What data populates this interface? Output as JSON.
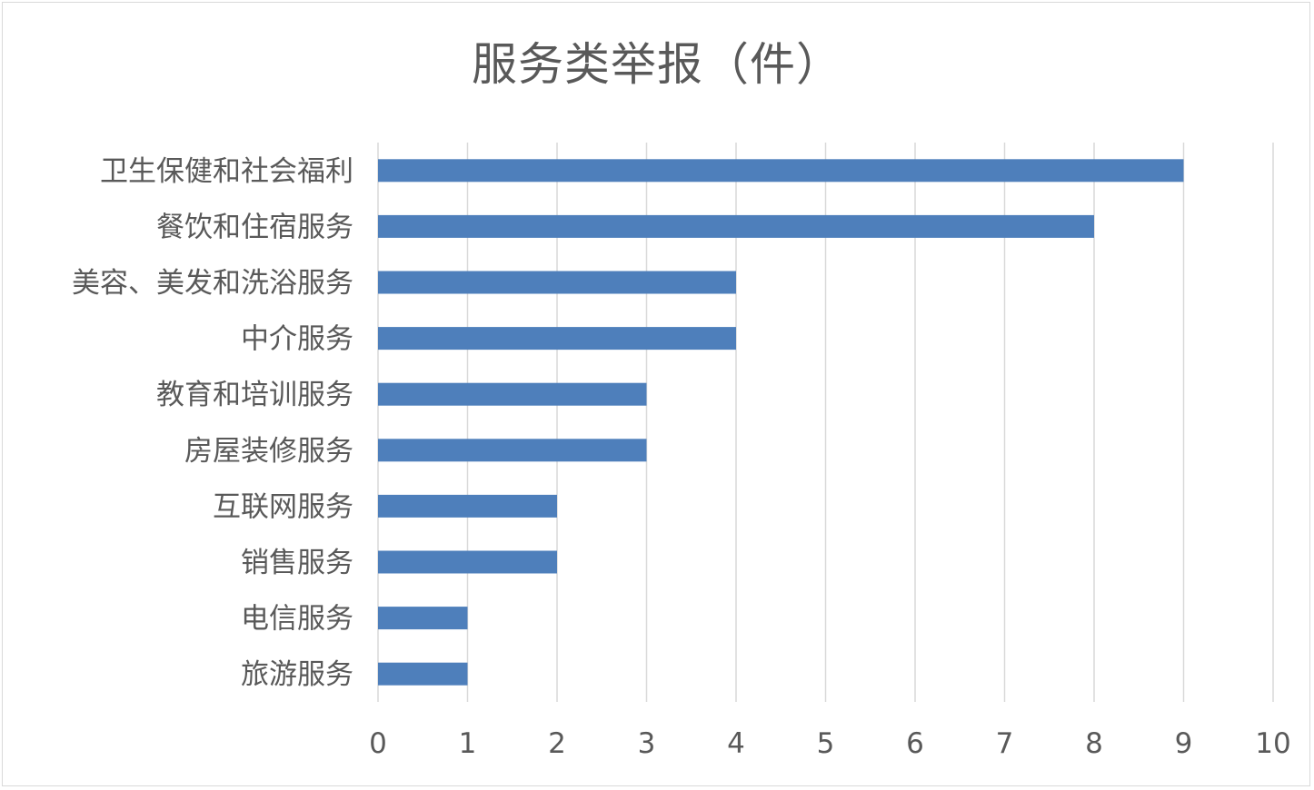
{
  "chart_data": {
    "type": "bar",
    "orientation": "horizontal",
    "title": "服务类举报（件）",
    "categories": [
      "卫生保健和社会福利",
      "餐饮和住宿服务",
      "美容、美发和洗浴服务",
      "中介服务",
      "教育和培训服务",
      "房屋装修服务",
      "互联网服务",
      "销售服务",
      "电信服务",
      "旅游服务"
    ],
    "values": [
      9,
      8,
      4,
      4,
      3,
      3,
      2,
      2,
      1,
      1
    ],
    "xlim": [
      0,
      10
    ],
    "xticks": [
      0,
      1,
      2,
      3,
      4,
      5,
      6,
      7,
      8,
      9,
      10
    ],
    "grid": true,
    "bar_color": "#4e7fbb",
    "grid_color": "#d9d9d9"
  }
}
